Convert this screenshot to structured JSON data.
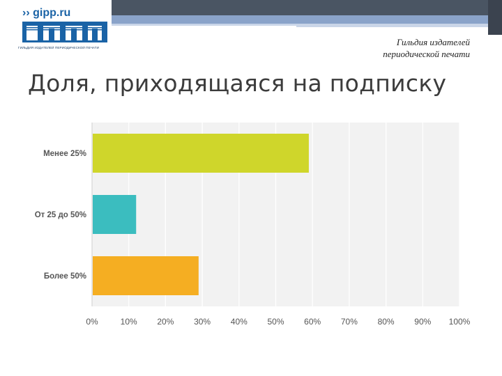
{
  "logo": {
    "site": "›› gipp.ru",
    "caption": "ГИЛЬДИЯ ИЗДАТЕЛЕЙ ПЕРИОДИЧЕСКОЙ ПЕЧАТИ"
  },
  "header": {
    "org_line1": "Гильдия издателей",
    "org_line2": "периодической печати"
  },
  "slide": {
    "title": "Доля, приходящаяся на подписку"
  },
  "colors": {
    "brand": "#1a63a6",
    "band_dark": "#4a5563",
    "band_blue": "#8aa3c9"
  },
  "chart_data": {
    "type": "bar",
    "orientation": "horizontal",
    "categories": [
      "Менее 25%",
      "От 25 до 50%",
      "Более 50%"
    ],
    "values": [
      59,
      12,
      29
    ],
    "colors": [
      "#cfd62b",
      "#3bbdbf",
      "#f5ae22"
    ],
    "xlim": [
      0,
      100
    ],
    "xticks": [
      "0%",
      "10%",
      "20%",
      "30%",
      "40%",
      "50%",
      "60%",
      "70%",
      "80%",
      "90%",
      "100%"
    ],
    "grid": true,
    "legend": "none"
  }
}
